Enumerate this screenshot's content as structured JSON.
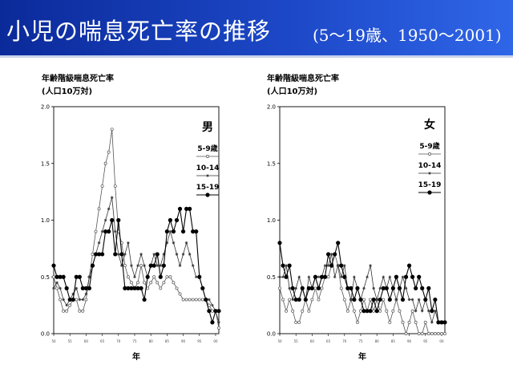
{
  "header": {
    "title": "小児の喘息死亡率の推移",
    "subtitle": "(5〜19歳、1950〜2001)"
  },
  "chart_data": [
    {
      "type": "line",
      "panel_label": "男",
      "ylabel_line1": "年齢階級喘息死亡率",
      "ylabel_line2": "(人口10万対)",
      "xlabel": "年",
      "ylim": [
        0,
        2.0
      ],
      "yticks": [
        "0.0",
        "0.5",
        "1.0",
        "1.5",
        "2.0"
      ],
      "xlim": [
        1950,
        2001
      ],
      "xticks": [
        {
          "year": 1950,
          "label": "50"
        },
        {
          "year": 1955,
          "label": "55"
        },
        {
          "year": 1960,
          "label": "60"
        },
        {
          "year": 1965,
          "label": "65"
        },
        {
          "year": 1970,
          "label": "70"
        },
        {
          "year": 1975,
          "label": "75"
        },
        {
          "year": 1980,
          "label": "80"
        },
        {
          "year": 1985,
          "label": "85"
        },
        {
          "year": 1990,
          "label": "90"
        },
        {
          "year": 1995,
          "label": "95"
        },
        {
          "year": 2000,
          "label": "00"
        }
      ],
      "legend_placement": "top-right",
      "series": [
        {
          "name": "5-9歳",
          "marker": "open",
          "x": [
            1950,
            1951,
            1952,
            1953,
            1954,
            1955,
            1956,
            1957,
            1958,
            1959,
            1960,
            1961,
            1962,
            1963,
            1964,
            1965,
            1966,
            1967,
            1968,
            1969,
            1970,
            1971,
            1972,
            1973,
            1974,
            1975,
            1976,
            1977,
            1978,
            1979,
            1980,
            1981,
            1982,
            1983,
            1984,
            1985,
            1986,
            1987,
            1988,
            1989,
            1990,
            1991,
            1992,
            1993,
            1994,
            1995,
            1996,
            1997,
            1998,
            1999,
            2000,
            2001
          ],
          "values": [
            0.5,
            0.4,
            0.3,
            0.2,
            0.2,
            0.25,
            0.3,
            0.3,
            0.2,
            0.2,
            0.3,
            0.5,
            0.7,
            0.9,
            1.1,
            1.3,
            1.5,
            1.6,
            1.8,
            1.3,
            0.9,
            0.8,
            0.6,
            0.5,
            0.45,
            0.4,
            0.45,
            0.6,
            0.45,
            0.4,
            0.45,
            0.5,
            0.45,
            0.4,
            0.45,
            0.5,
            0.5,
            0.45,
            0.4,
            0.35,
            0.3,
            0.3,
            0.3,
            0.3,
            0.3,
            0.3,
            0.3,
            0.3,
            0.25,
            0.2,
            0.2,
            0.05
          ]
        },
        {
          "name": "10-14",
          "marker": "star",
          "x": [
            1950,
            1951,
            1952,
            1953,
            1954,
            1955,
            1956,
            1957,
            1958,
            1959,
            1960,
            1961,
            1962,
            1963,
            1964,
            1965,
            1966,
            1967,
            1968,
            1969,
            1970,
            1971,
            1972,
            1973,
            1974,
            1975,
            1976,
            1977,
            1978,
            1979,
            1980,
            1981,
            1982,
            1983,
            1984,
            1985,
            1986,
            1987,
            1988,
            1989,
            1990,
            1991,
            1992,
            1993,
            1994,
            1995,
            1996,
            1997,
            1998,
            1999,
            2000,
            2001
          ],
          "values": [
            0.4,
            0.45,
            0.4,
            0.3,
            0.25,
            0.3,
            0.35,
            0.4,
            0.3,
            0.3,
            0.35,
            0.5,
            0.6,
            0.7,
            0.8,
            0.9,
            1.0,
            1.1,
            1.2,
            0.9,
            0.7,
            0.6,
            0.7,
            0.8,
            0.6,
            0.5,
            0.6,
            0.7,
            0.6,
            0.5,
            0.6,
            0.7,
            0.6,
            0.6,
            0.7,
            0.8,
            0.9,
            0.8,
            0.7,
            0.6,
            0.7,
            0.8,
            0.7,
            0.6,
            0.5,
            0.5,
            0.4,
            0.3,
            0.3,
            0.25,
            0.2,
            0.1
          ]
        },
        {
          "name": "15-19",
          "marker": "filled",
          "x": [
            1950,
            1951,
            1952,
            1953,
            1954,
            1955,
            1956,
            1957,
            1958,
            1959,
            1960,
            1961,
            1962,
            1963,
            1964,
            1965,
            1966,
            1967,
            1968,
            1969,
            1970,
            1971,
            1972,
            1973,
            1974,
            1975,
            1976,
            1977,
            1978,
            1979,
            1980,
            1981,
            1982,
            1983,
            1984,
            1985,
            1986,
            1987,
            1988,
            1989,
            1990,
            1991,
            1992,
            1993,
            1994,
            1995,
            1996,
            1997,
            1998,
            1999,
            2000,
            2001
          ],
          "values": [
            0.6,
            0.5,
            0.5,
            0.5,
            0.4,
            0.3,
            0.3,
            0.5,
            0.5,
            0.4,
            0.4,
            0.4,
            0.6,
            0.7,
            0.7,
            0.7,
            0.9,
            0.9,
            1.0,
            0.7,
            1.0,
            0.7,
            0.4,
            0.4,
            0.4,
            0.4,
            0.4,
            0.4,
            0.3,
            0.5,
            0.6,
            0.6,
            0.7,
            0.5,
            0.6,
            0.9,
            1.0,
            0.9,
            1.0,
            1.1,
            0.9,
            1.1,
            1.1,
            0.9,
            0.9,
            0.5,
            0.4,
            0.3,
            0.2,
            0.1,
            0.2,
            0.2
          ]
        }
      ]
    },
    {
      "type": "line",
      "panel_label": "女",
      "ylabel_line1": "年齢階級喘息死亡率",
      "ylabel_line2": "(人口10万対)",
      "xlabel": "年",
      "ylim": [
        0,
        2.0
      ],
      "yticks": [
        "0.0",
        "0.5",
        "1.0",
        "1.5",
        "2.0"
      ],
      "xlim": [
        1950,
        2001
      ],
      "xticks": [
        {
          "year": 1950,
          "label": "50"
        },
        {
          "year": 1955,
          "label": "55"
        },
        {
          "year": 1960,
          "label": "60"
        },
        {
          "year": 1965,
          "label": "65"
        },
        {
          "year": 1970,
          "label": "70"
        },
        {
          "year": 1975,
          "label": "75"
        },
        {
          "year": 1980,
          "label": "80"
        },
        {
          "year": 1985,
          "label": "85"
        },
        {
          "year": 1990,
          "label": "90"
        },
        {
          "year": 1995,
          "label": "95"
        },
        {
          "year": 2000,
          "label": "00"
        }
      ],
      "legend_placement": "top-right",
      "series": [
        {
          "name": "5-9歳",
          "marker": "open",
          "x": [
            1950,
            1951,
            1952,
            1953,
            1954,
            1955,
            1956,
            1957,
            1958,
            1959,
            1960,
            1961,
            1962,
            1963,
            1964,
            1965,
            1966,
            1967,
            1968,
            1969,
            1970,
            1971,
            1972,
            1973,
            1974,
            1975,
            1976,
            1977,
            1978,
            1979,
            1980,
            1981,
            1982,
            1983,
            1984,
            1985,
            1986,
            1987,
            1988,
            1989,
            1990,
            1991,
            1992,
            1993,
            1994,
            1995,
            1996,
            1997,
            1998,
            1999,
            2000,
            2001
          ],
          "values": [
            0.4,
            0.3,
            0.2,
            0.3,
            0.2,
            0.1,
            0.1,
            0.2,
            0.3,
            0.2,
            0.3,
            0.4,
            0.3,
            0.4,
            0.5,
            0.5,
            0.6,
            0.7,
            0.6,
            0.4,
            0.3,
            0.2,
            0.3,
            0.2,
            0.1,
            0.2,
            0.3,
            0.2,
            0.3,
            0.2,
            0.3,
            0.2,
            0.3,
            0.2,
            0.1,
            0.2,
            0.3,
            0.2,
            0.1,
            0.0,
            0.1,
            0.2,
            0.1,
            0.0,
            0.0,
            0.1,
            0.0,
            0.0,
            0.0,
            0.0,
            0.0,
            0.0
          ]
        },
        {
          "name": "10-14",
          "marker": "star",
          "x": [
            1950,
            1951,
            1952,
            1953,
            1954,
            1955,
            1956,
            1957,
            1958,
            1959,
            1960,
            1961,
            1962,
            1963,
            1964,
            1965,
            1966,
            1967,
            1968,
            1969,
            1970,
            1971,
            1972,
            1973,
            1974,
            1975,
            1976,
            1977,
            1978,
            1979,
            1980,
            1981,
            1982,
            1983,
            1984,
            1985,
            1986,
            1987,
            1988,
            1989,
            1990,
            1991,
            1992,
            1993,
            1994,
            1995,
            1996,
            1997,
            1998,
            1999,
            2000,
            2001
          ],
          "values": [
            0.5,
            0.5,
            0.6,
            0.4,
            0.3,
            0.4,
            0.5,
            0.4,
            0.3,
            0.5,
            0.4,
            0.5,
            0.5,
            0.5,
            0.6,
            0.6,
            0.7,
            0.5,
            0.6,
            0.5,
            0.6,
            0.4,
            0.3,
            0.5,
            0.4,
            0.3,
            0.4,
            0.5,
            0.6,
            0.4,
            0.3,
            0.4,
            0.5,
            0.4,
            0.5,
            0.4,
            0.3,
            0.4,
            0.5,
            0.4,
            0.3,
            0.3,
            0.2,
            0.3,
            0.2,
            0.3,
            0.2,
            0.1,
            0.2,
            0.1,
            0.1,
            0.1
          ]
        },
        {
          "name": "15-19",
          "marker": "filled",
          "x": [
            1950,
            1951,
            1952,
            1953,
            1954,
            1955,
            1956,
            1957,
            1958,
            1959,
            1960,
            1961,
            1962,
            1963,
            1964,
            1965,
            1966,
            1967,
            1968,
            1969,
            1970,
            1971,
            1972,
            1973,
            1974,
            1975,
            1976,
            1977,
            1978,
            1979,
            1980,
            1981,
            1982,
            1983,
            1984,
            1985,
            1986,
            1987,
            1988,
            1989,
            1990,
            1991,
            1992,
            1993,
            1994,
            1995,
            1996,
            1997,
            1998,
            1999,
            2000,
            2001
          ],
          "values": [
            0.8,
            0.6,
            0.5,
            0.6,
            0.4,
            0.3,
            0.3,
            0.4,
            0.3,
            0.4,
            0.4,
            0.5,
            0.4,
            0.5,
            0.5,
            0.7,
            0.6,
            0.7,
            0.8,
            0.6,
            0.5,
            0.4,
            0.4,
            0.3,
            0.4,
            0.3,
            0.2,
            0.2,
            0.2,
            0.3,
            0.2,
            0.3,
            0.4,
            0.4,
            0.3,
            0.4,
            0.5,
            0.4,
            0.3,
            0.5,
            0.6,
            0.5,
            0.4,
            0.5,
            0.4,
            0.3,
            0.4,
            0.2,
            0.3,
            0.1,
            0.1,
            0.1
          ]
        }
      ]
    }
  ]
}
